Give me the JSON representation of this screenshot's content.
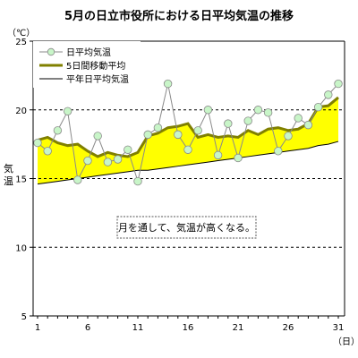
{
  "chart_data": {
    "type": "line",
    "title": "5月の日立市役所における日平均気温の推移",
    "y_unit": "（℃）",
    "x_unit": "（日）",
    "ylabel": "気温",
    "ylim": [
      5,
      25
    ],
    "yticks": [
      5,
      10,
      15,
      20,
      25
    ],
    "xlim": [
      1,
      31
    ],
    "xticks": [
      1,
      6,
      11,
      16,
      21,
      26,
      31
    ],
    "grid": "horizontal dashed",
    "legend_position": "top-left",
    "annotation": "月を通して、気温が高くなる。",
    "x": [
      1,
      2,
      3,
      4,
      5,
      6,
      7,
      8,
      9,
      10,
      11,
      12,
      13,
      14,
      15,
      16,
      17,
      18,
      19,
      20,
      21,
      22,
      23,
      24,
      25,
      26,
      27,
      28,
      29,
      30,
      31
    ],
    "series": [
      {
        "name": "日平均気温",
        "style": "marker-line",
        "color": "#8a8a8a",
        "marker_fill": "#c8f5c8",
        "values": [
          17.6,
          17.0,
          18.5,
          19.9,
          14.9,
          16.3,
          18.1,
          16.2,
          16.4,
          17.1,
          14.8,
          18.2,
          18.7,
          21.9,
          18.2,
          17.1,
          18.5,
          20.0,
          16.7,
          19.0,
          16.5,
          19.2,
          20.0,
          19.8,
          17.0,
          18.1,
          19.4,
          18.9,
          20.2,
          21.1,
          21.9
        ]
      },
      {
        "name": "5日間移動平均",
        "style": "thick-line",
        "color": "#808000",
        "values": [
          17.8,
          18.0,
          17.6,
          17.4,
          17.5,
          17.0,
          16.6,
          16.9,
          16.7,
          16.6,
          16.9,
          18.1,
          18.3,
          18.7,
          18.8,
          19.0,
          18.0,
          18.2,
          18.0,
          18.1,
          18.0,
          18.5,
          18.2,
          18.6,
          18.7,
          18.5,
          18.6,
          19.0,
          20.2,
          20.3,
          20.9
        ]
      },
      {
        "name": "平年日平均気温",
        "style": "thin-line",
        "color": "#000000",
        "values": [
          14.6,
          14.7,
          14.8,
          14.9,
          15.0,
          15.1,
          15.2,
          15.3,
          15.4,
          15.5,
          15.6,
          15.6,
          15.7,
          15.8,
          15.9,
          16.0,
          16.1,
          16.2,
          16.3,
          16.4,
          16.5,
          16.6,
          16.7,
          16.8,
          16.9,
          17.0,
          17.1,
          17.2,
          17.4,
          17.5,
          17.7
        ]
      }
    ],
    "fill_between": {
      "upper": "5日間移動平均",
      "lower": "平年日平均気温",
      "color": "#ffff00"
    }
  }
}
